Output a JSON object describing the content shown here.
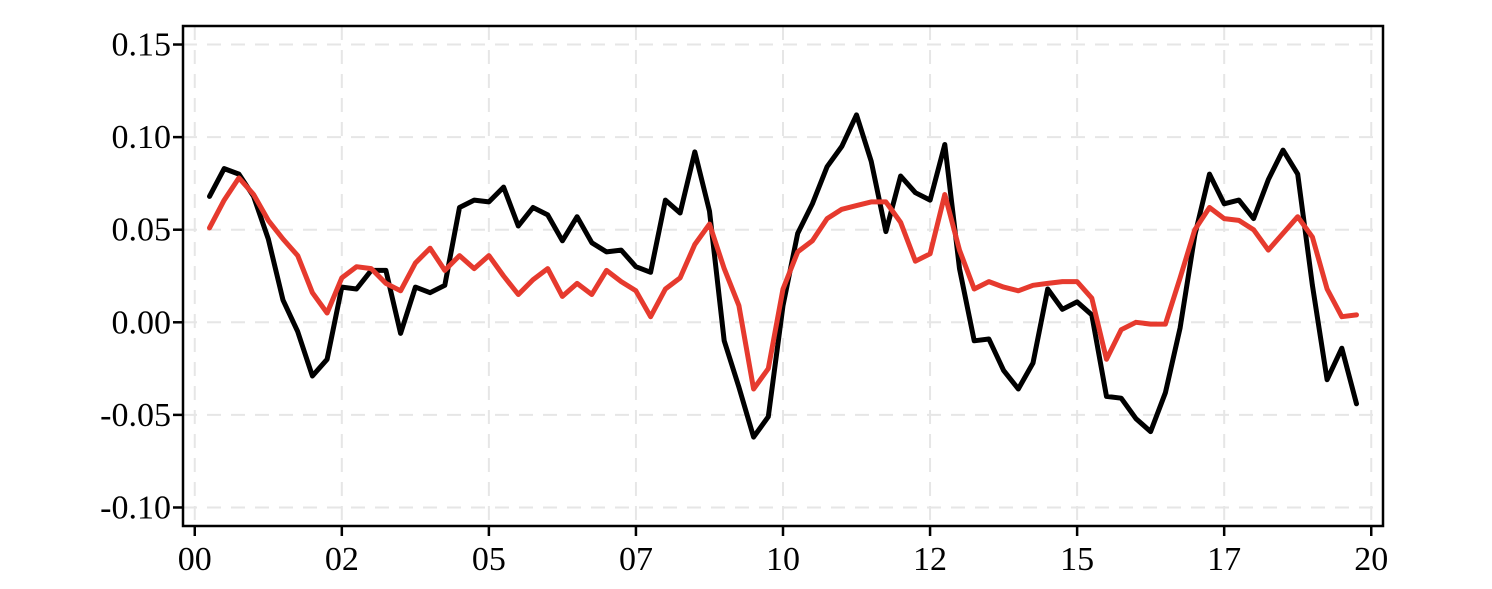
{
  "chart_data": {
    "type": "line",
    "title": "",
    "xlabel": "",
    "ylabel": "",
    "xlim": [
      -0.2,
      20.2
    ],
    "ylim": [
      -0.11,
      0.16
    ],
    "grid": true,
    "x_ticks": [
      {
        "value": 0.0,
        "label": "00"
      },
      {
        "value": 2.5,
        "label": "02"
      },
      {
        "value": 5.0,
        "label": "05"
      },
      {
        "value": 7.5,
        "label": "07"
      },
      {
        "value": 10.0,
        "label": "10"
      },
      {
        "value": 12.5,
        "label": "12"
      },
      {
        "value": 15.0,
        "label": "15"
      },
      {
        "value": 17.5,
        "label": "17"
      },
      {
        "value": 20.0,
        "label": "20"
      }
    ],
    "y_ticks": [
      {
        "value": 0.15,
        "label": "0.15"
      },
      {
        "value": 0.1,
        "label": "0.10"
      },
      {
        "value": 0.05,
        "label": "0.05"
      },
      {
        "value": 0.0,
        "label": "0.00"
      },
      {
        "value": -0.05,
        "label": "-0.05"
      },
      {
        "value": -0.1,
        "label": "-0.10"
      }
    ],
    "x": [
      0.25,
      0.5,
      0.75,
      1.0,
      1.25,
      1.5,
      1.75,
      2.0,
      2.25,
      2.5,
      2.75,
      3.0,
      3.25,
      3.5,
      3.75,
      4.0,
      4.25,
      4.5,
      4.75,
      5.0,
      5.25,
      5.5,
      5.75,
      6.0,
      6.25,
      6.5,
      6.75,
      7.0,
      7.25,
      7.5,
      7.75,
      8.0,
      8.25,
      8.5,
      8.75,
      9.0,
      9.25,
      9.5,
      9.75,
      10.0,
      10.25,
      10.5,
      10.75,
      11.0,
      11.25,
      11.5,
      11.75,
      12.0,
      12.25,
      12.5,
      12.75,
      13.0,
      13.25,
      13.5,
      13.75,
      14.0,
      14.25,
      14.5,
      14.75,
      15.0,
      15.25,
      15.5,
      15.75,
      16.0,
      16.25,
      16.5,
      16.75,
      17.0,
      17.25,
      17.5,
      17.75,
      18.0,
      18.25,
      18.5,
      18.75,
      19.0,
      19.25,
      19.5,
      19.75
    ],
    "series": [
      {
        "color": "#000000",
        "values": [
          0.068,
          0.083,
          0.08,
          0.068,
          0.045,
          0.012,
          -0.005,
          -0.029,
          -0.02,
          0.019,
          0.018,
          0.028,
          0.028,
          -0.006,
          0.019,
          0.016,
          0.02,
          0.062,
          0.066,
          0.065,
          0.073,
          0.052,
          0.062,
          0.058,
          0.044,
          0.057,
          0.043,
          0.038,
          0.039,
          0.03,
          0.027,
          0.066,
          0.059,
          0.092,
          0.06,
          -0.01,
          -0.035,
          -0.062,
          -0.051,
          0.009,
          0.048,
          0.064,
          0.084,
          0.095,
          0.112,
          0.087,
          0.049,
          0.079,
          0.07,
          0.066,
          0.096,
          0.029,
          -0.01,
          -0.009,
          -0.026,
          -0.036,
          -0.022,
          0.018,
          0.007,
          0.011,
          0.004,
          -0.04,
          -0.041,
          -0.052,
          -0.059,
          -0.038,
          -0.003,
          0.047,
          0.08,
          0.064,
          0.066,
          0.056,
          0.077,
          0.093,
          0.08,
          0.02,
          -0.031,
          -0.014,
          -0.044
        ]
      },
      {
        "color": "#e63a2e",
        "values": [
          0.051,
          0.066,
          0.078,
          0.069,
          0.055,
          0.045,
          0.036,
          0.016,
          0.005,
          0.024,
          0.03,
          0.029,
          0.021,
          0.017,
          0.032,
          0.04,
          0.028,
          0.036,
          0.029,
          0.036,
          0.025,
          0.015,
          0.023,
          0.029,
          0.014,
          0.021,
          0.015,
          0.028,
          0.022,
          0.017,
          0.003,
          0.018,
          0.024,
          0.042,
          0.053,
          0.029,
          0.009,
          -0.036,
          -0.025,
          0.018,
          0.038,
          0.044,
          0.056,
          0.061,
          0.063,
          0.065,
          0.065,
          0.054,
          0.033,
          0.037,
          0.069,
          0.039,
          0.018,
          0.022,
          0.019,
          0.017,
          0.02,
          0.021,
          0.022,
          0.022,
          0.013,
          -0.02,
          -0.004,
          0.0,
          -0.001,
          -0.001,
          0.024,
          0.05,
          0.062,
          0.056,
          0.055,
          0.05,
          0.039,
          0.048,
          0.057,
          0.046,
          0.018,
          0.003,
          0.004
        ]
      }
    ]
  }
}
